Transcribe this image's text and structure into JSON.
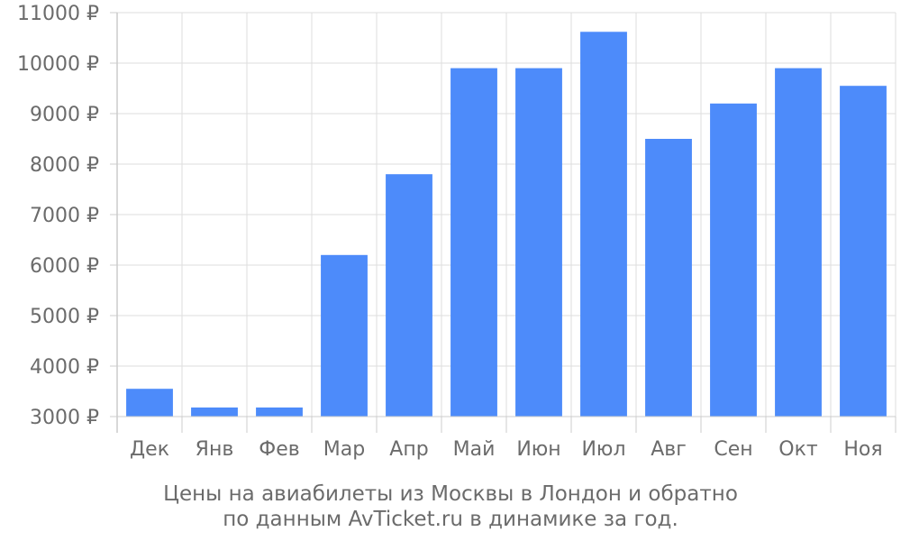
{
  "chart_data": {
    "type": "bar",
    "categories": [
      "Дек",
      "Янв",
      "Фев",
      "Мар",
      "Апр",
      "Май",
      "Июн",
      "Июл",
      "Авг",
      "Сен",
      "Окт",
      "Ноя"
    ],
    "values": [
      3550,
      3180,
      3180,
      6200,
      7800,
      9900,
      9900,
      10620,
      8500,
      9200,
      9900,
      9550
    ],
    "ylim": [
      3000,
      11000
    ],
    "yticks": [
      3000,
      4000,
      5000,
      6000,
      7000,
      8000,
      9000,
      10000,
      11000
    ],
    "ytick_labels": [
      "3000 ₽",
      "4000 ₽",
      "5000 ₽",
      "6000 ₽",
      "7000 ₽",
      "8000 ₽",
      "9000 ₽",
      "10000 ₽",
      "11000 ₽"
    ],
    "grid": true,
    "bar_color": "#4d8bfa",
    "caption": {
      "line1": "Цены на авиабилеты из Москвы в Лондон и обратно",
      "line2": "по данным AvTicket.ru в динамике за год."
    }
  }
}
